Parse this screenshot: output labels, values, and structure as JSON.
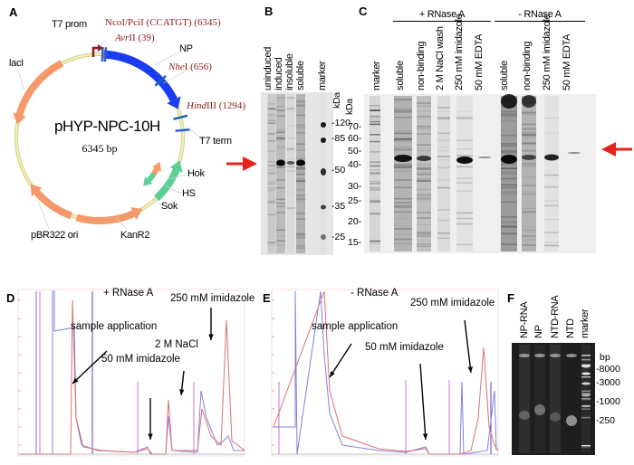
{
  "panels": {
    "a": "A",
    "b": "B",
    "c": "C",
    "d": "D",
    "e": "E",
    "f": "F"
  },
  "plasmid": {
    "name": "pHYP-NPC-10H",
    "size": "6345 bp",
    "features": {
      "t7_prom": "T7 prom",
      "np": "NP",
      "t7_term": "T7 term",
      "hok": "Hok",
      "hs": "HS",
      "sok": "Sok",
      "kanr2": "KanR2",
      "ori": "pBR322 ori",
      "laci": "lacI"
    },
    "sites": {
      "ncoi": "NcoI/PciI (CCATGT) (6345)",
      "avrii_it": "Avr",
      "avrii_rest": "II (39)",
      "nhei_it": "Nhe",
      "nhei_rest": "I (656)",
      "hindiii_it": "Hind",
      "hindiii_rest": "III (1294)"
    },
    "colors": {
      "np": "#1a3cf0",
      "resistance": "#f4996a",
      "hok_sok": "#5ccf95",
      "promoter": "#8b1a1a",
      "backbone": "#f0efb0"
    }
  },
  "gel_b": {
    "lanes": [
      "uninduced",
      "induced",
      "insoluble",
      "soluble",
      "marker"
    ],
    "unit": "kDa",
    "markers": [
      "-120",
      "-85",
      "-50",
      "-35",
      "-25"
    ]
  },
  "gel_c": {
    "groups": [
      "+ RNase A",
      "- RNase A"
    ],
    "lanes": [
      "marker",
      "soluble",
      "non-binding",
      "2 M NaCl wash",
      "250 mM imidazole",
      "50 mM EDTA",
      "soluble",
      "non-binding",
      "250 mM imidazole",
      "50 mM EDTA"
    ],
    "unit": "kDa",
    "markers": [
      "70-",
      "60-",
      "50-",
      "40-",
      "30-",
      "25-",
      "20-",
      "15-"
    ]
  },
  "arrow_color": "#e8231f",
  "chrom_d": {
    "condition": "+ RNase A",
    "annotations": {
      "sample": "sample application",
      "imid50": "50 mM imidazole",
      "nacl": "2 M NaCl",
      "imid250": "250 mM imidazole"
    }
  },
  "chrom_e": {
    "condition": "- RNase A",
    "annotations": {
      "sample": "sample application",
      "imid50": "50 mM imidazole",
      "imid250": "250 mM imidazole"
    }
  },
  "gel_f": {
    "lanes": [
      "NP-RNA",
      "NP",
      "NTD-RNA",
      "NTD",
      "marker"
    ],
    "unit": "bp",
    "markers": [
      "-8000",
      "-3000",
      "-1000",
      "-250"
    ]
  }
}
